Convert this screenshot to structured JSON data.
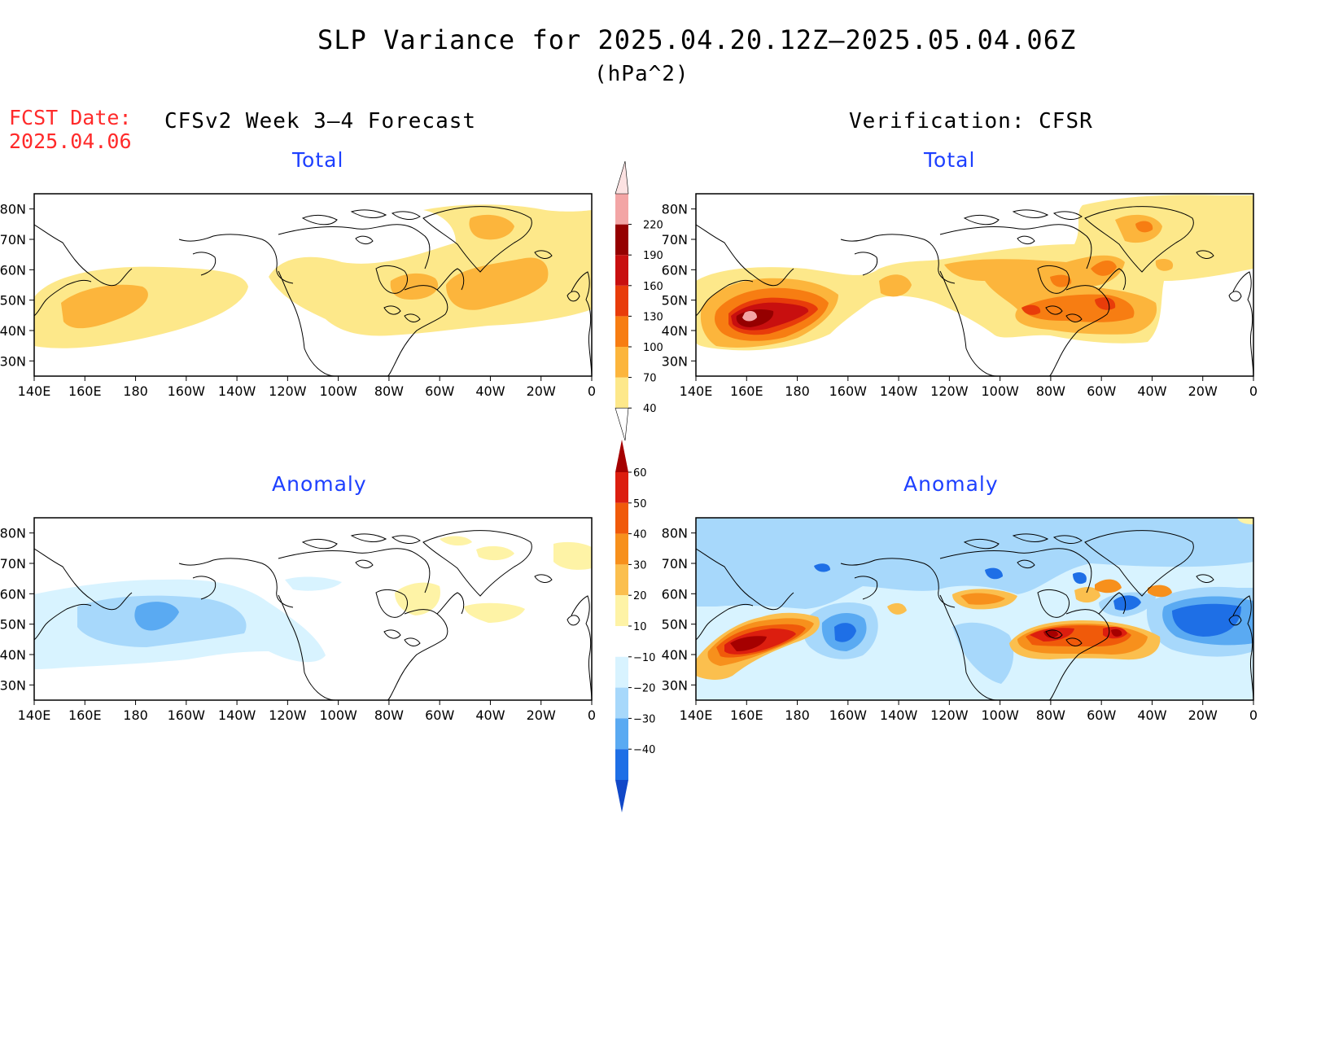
{
  "header": {
    "title": "SLP Variance for 2025.04.20.12Z–2025.05.04.06Z",
    "units": "(hPa^2)",
    "fcst_label": "FCST Date:",
    "fcst_date": "2025.04.06",
    "left_column": "CFSv2 Week 3–4 Forecast",
    "right_column": "Verification: CFSR"
  },
  "panels": [
    {
      "id": "fcst-total",
      "title": "Total"
    },
    {
      "id": "verif-total",
      "title": "Total"
    },
    {
      "id": "fcst-anomaly",
      "title": "Anomaly"
    },
    {
      "id": "verif-anomaly",
      "title": "Anomaly"
    }
  ],
  "axes": {
    "lat_labels": [
      "80N",
      "70N",
      "60N",
      "50N",
      "40N",
      "30N"
    ],
    "lat_values": [
      80,
      70,
      60,
      50,
      40,
      30
    ],
    "lon_labels": [
      "140E",
      "160E",
      "180",
      "160W",
      "140W",
      "120W",
      "100W",
      "80W",
      "60W",
      "40W",
      "20W",
      "0"
    ],
    "lon_values": [
      140,
      160,
      180,
      200,
      220,
      240,
      260,
      280,
      300,
      320,
      340,
      360
    ],
    "lat_range": [
      25,
      85
    ],
    "lon_range": [
      140,
      360
    ]
  },
  "colorbars": {
    "total": {
      "levels": [
        "40",
        "70",
        "100",
        "130",
        "160",
        "190",
        "220"
      ],
      "colors": [
        "#fde88a",
        "#fcb53c",
        "#f77d12",
        "#e83c0a",
        "#c80f0f",
        "#950000",
        "#f3a5a5",
        "#fce2e2"
      ]
    },
    "anomaly": {
      "levels": [
        "60",
        "50",
        "40",
        "30",
        "20",
        "10",
        "−10",
        "−20",
        "−30",
        "−40"
      ],
      "colors_top_to_bottom": [
        "#a50000",
        "#dc1e0f",
        "#f05a0a",
        "#f7901c",
        "#fbbf4e",
        "#fef3a6",
        "#ffffff",
        "#d8f3ff",
        "#a7d8fb",
        "#5aaaf2",
        "#1e6fe6",
        "#1148c8"
      ]
    }
  },
  "color_keys": {
    "map_outline": "#000000",
    "panel_title": "#1d3fff",
    "fcst_date": "#ff2a2a"
  }
}
